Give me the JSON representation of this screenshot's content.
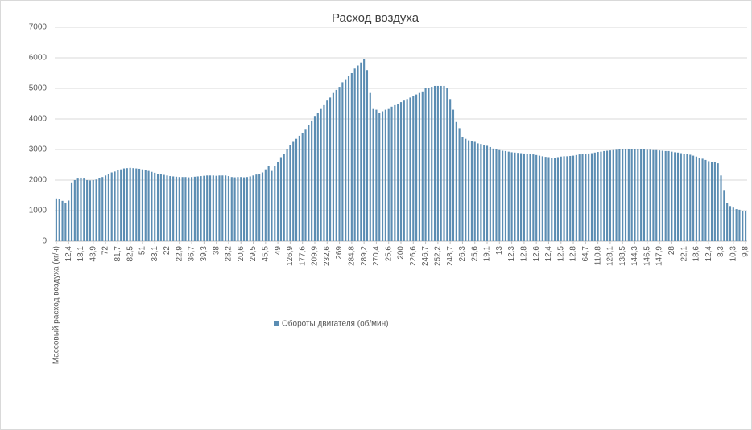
{
  "chart_data": {
    "type": "bar",
    "title": "Расход воздуха",
    "categories": [
      "Массовый расход воздуха (кг/ч)",
      null,
      null,
      null,
      "12,4",
      null,
      null,
      null,
      "18,1",
      null,
      null,
      null,
      "43,9",
      null,
      null,
      null,
      "72",
      null,
      null,
      null,
      "81,7",
      null,
      null,
      null,
      "82,5",
      null,
      null,
      null,
      "51",
      null,
      null,
      null,
      "33,1",
      null,
      null,
      null,
      "22",
      null,
      null,
      null,
      "22,9",
      null,
      null,
      null,
      "36,7",
      null,
      null,
      null,
      "39,3",
      null,
      null,
      null,
      "38",
      null,
      null,
      null,
      "28,2",
      null,
      null,
      null,
      "20,6",
      null,
      null,
      null,
      "29,5",
      null,
      null,
      null,
      "45,5",
      null,
      null,
      null,
      "49",
      null,
      null,
      null,
      "126,9",
      null,
      null,
      null,
      "177,6",
      null,
      null,
      null,
      "209,9",
      null,
      null,
      null,
      "232,6",
      null,
      null,
      null,
      "269",
      null,
      null,
      null,
      "284,8",
      null,
      null,
      null,
      "289,2",
      null,
      null,
      null,
      "270,4",
      null,
      null,
      null,
      "25,6",
      null,
      null,
      null,
      "200",
      null,
      null,
      null,
      "226,6",
      null,
      null,
      null,
      "246,7",
      null,
      null,
      null,
      "252,2",
      null,
      null,
      null,
      "248,7",
      null,
      null,
      null,
      "26,3",
      null,
      null,
      null,
      "25,6",
      null,
      null,
      null,
      "19,1",
      null,
      null,
      null,
      "13",
      null,
      null,
      null,
      "12,3",
      null,
      null,
      null,
      "12,8",
      null,
      null,
      null,
      "12,6",
      null,
      null,
      null,
      "12,4",
      null,
      null,
      null,
      "12,5",
      null,
      null,
      null,
      "12,8",
      null,
      null,
      null,
      "64,7",
      null,
      null,
      null,
      "110,8",
      null,
      null,
      null,
      "128,1",
      null,
      null,
      null,
      "138,5",
      null,
      null,
      null,
      "144,3",
      null,
      null,
      null,
      "146,5",
      null,
      null,
      null,
      "147,9",
      null,
      null,
      null,
      "28",
      null,
      null,
      null,
      "22,1",
      null,
      null,
      null,
      "18,6",
      null,
      null,
      null,
      "12,4",
      null,
      null,
      null,
      "8,3",
      null,
      null,
      null,
      "10,3",
      null,
      null,
      null,
      "9,8"
    ],
    "series": [
      {
        "name": "Обороты двигателя (об/мин)",
        "color": "#5b8db3",
        "values": [
          1400,
          1380,
          1320,
          1250,
          1330,
          1900,
          2000,
          2050,
          2080,
          2050,
          2000,
          1990,
          2000,
          2020,
          2060,
          2100,
          2150,
          2200,
          2250,
          2280,
          2320,
          2350,
          2380,
          2390,
          2400,
          2390,
          2380,
          2370,
          2350,
          2330,
          2300,
          2270,
          2240,
          2210,
          2190,
          2170,
          2150,
          2130,
          2120,
          2110,
          2100,
          2100,
          2100,
          2090,
          2100,
          2110,
          2120,
          2130,
          2140,
          2150,
          2150,
          2150,
          2140,
          2150,
          2150,
          2150,
          2130,
          2100,
          2090,
          2100,
          2100,
          2090,
          2100,
          2120,
          2150,
          2180,
          2200,
          2250,
          2350,
          2450,
          2300,
          2450,
          2600,
          2750,
          2850,
          3000,
          3150,
          3250,
          3350,
          3450,
          3550,
          3650,
          3800,
          3950,
          4100,
          4200,
          4350,
          4450,
          4600,
          4700,
          4850,
          4950,
          5050,
          5200,
          5300,
          5400,
          5500,
          5650,
          5750,
          5850,
          5950,
          5600,
          4850,
          4350,
          4300,
          4200,
          4250,
          4300,
          4350,
          4400,
          4450,
          4500,
          4550,
          4600,
          4650,
          4700,
          4750,
          4800,
          4850,
          4900,
          5000,
          5000,
          5050,
          5080,
          5080,
          5080,
          5080,
          5000,
          4650,
          4300,
          3900,
          3700,
          3400,
          3350,
          3300,
          3280,
          3250,
          3200,
          3180,
          3150,
          3120,
          3080,
          3030,
          3000,
          2980,
          2960,
          2950,
          2930,
          2910,
          2900,
          2890,
          2880,
          2870,
          2860,
          2850,
          2840,
          2820,
          2800,
          2780,
          2760,
          2750,
          2730,
          2720,
          2750,
          2770,
          2780,
          2780,
          2790,
          2800,
          2820,
          2840,
          2850,
          2860,
          2870,
          2880,
          2900,
          2920,
          2930,
          2950,
          2960,
          2970,
          2980,
          2990,
          3000,
          3000,
          3000,
          3000,
          3000,
          3000,
          3000,
          3000,
          3000,
          2990,
          2990,
          2980,
          2980,
          2970,
          2960,
          2950,
          2950,
          2930,
          2910,
          2900,
          2880,
          2860,
          2850,
          2830,
          2800,
          2770,
          2730,
          2700,
          2660,
          2620,
          2600,
          2580,
          2550,
          2150,
          1650,
          1250,
          1150,
          1100,
          1050,
          1030,
          1000,
          1000
        ]
      }
    ],
    "ylim": [
      0,
      7000
    ],
    "yticks": [
      0,
      1000,
      2000,
      3000,
      4000,
      5000,
      6000,
      7000
    ],
    "grid": true,
    "legend": "bottom"
  }
}
